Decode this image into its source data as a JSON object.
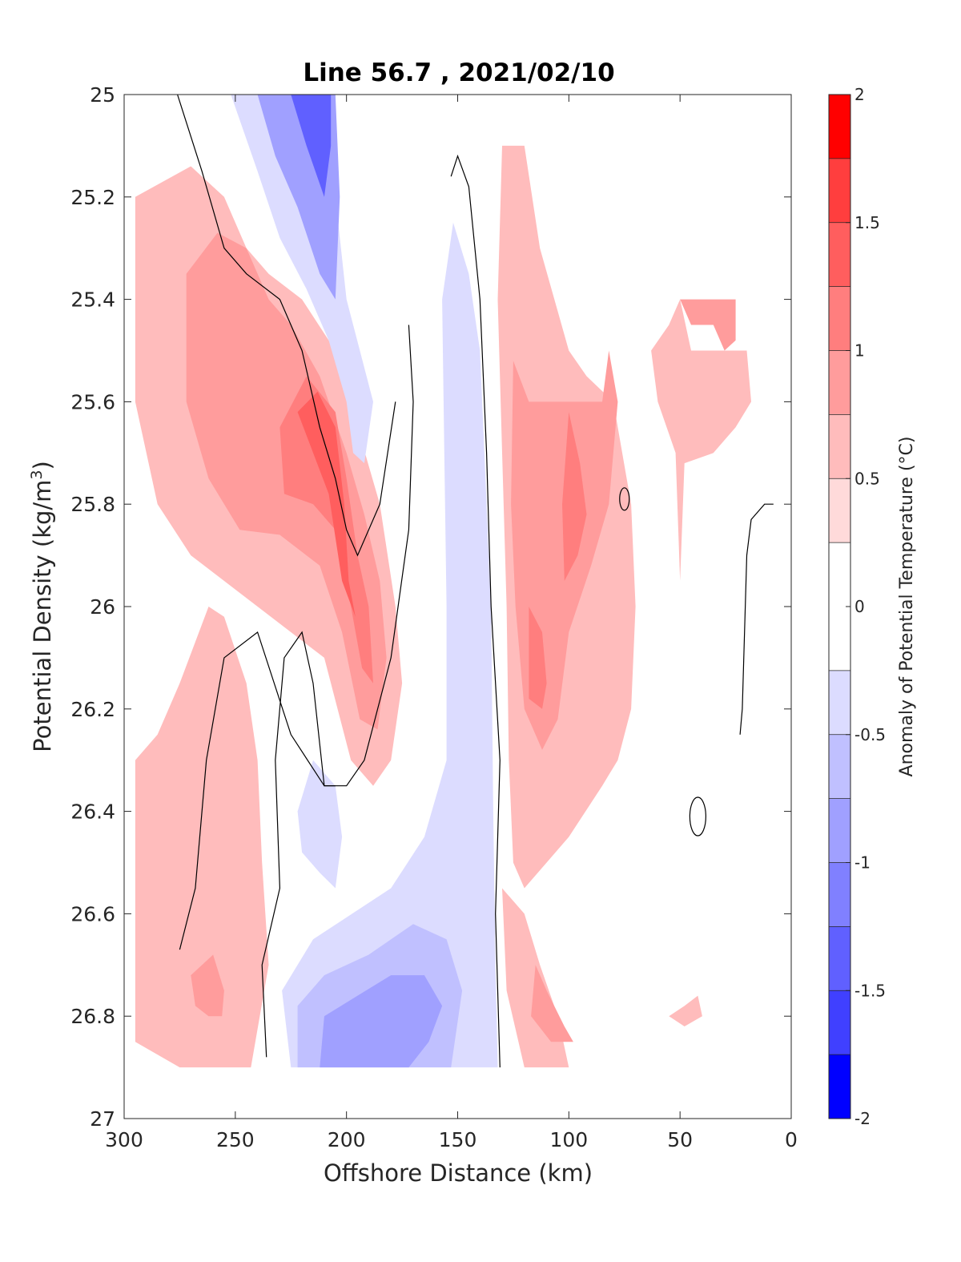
{
  "chart_data": {
    "type": "heatmap",
    "subtype": "filled-contour",
    "title": "Line 56.7 , 2021/02/10",
    "xlabel": "Offshore Distance (km)",
    "ylabel_text": "Potential Density (kg/m",
    "ylabel_superscript": "3",
    "ylabel_close": ")",
    "xlim": [
      300,
      0
    ],
    "ylim": [
      25,
      27
    ],
    "y_reversed": true,
    "x_reversed": true,
    "x_ticks": [
      "300",
      "250",
      "200",
      "150",
      "100",
      "50",
      "0"
    ],
    "y_ticks": [
      "25",
      "25.2",
      "25.4",
      "25.6",
      "25.8",
      "26",
      "26.2",
      "26.4",
      "26.6",
      "26.8",
      "27"
    ],
    "colorbar": {
      "label": "Anomaly of Potential Temperature (°C)",
      "range": [
        -2,
        2
      ],
      "tick_labels": [
        "2",
        "1.5",
        "1",
        "0.5",
        "0",
        "-0.5",
        "-1",
        "-1.5",
        "-2"
      ],
      "levels": [
        -2,
        -1.75,
        -1.5,
        -1.25,
        -1,
        -0.75,
        -0.5,
        -0.25,
        0.25,
        0.5,
        0.75,
        1,
        1.25,
        1.5,
        1.75,
        2
      ],
      "colors": [
        "#0000ff",
        "#2020ff",
        "#4040ff",
        "#6060ff",
        "#8080ff",
        "#a0a0ff",
        "#c0c0ff",
        "#dcdcff",
        "#ffffff",
        "#ffdada",
        "#ffbcbc",
        "#ff9c9c",
        "#ff7e7e",
        "#ff5e5e",
        "#ff3e3e",
        "#ff1e1e",
        "#ff0000"
      ]
    },
    "grid": false,
    "contour_zero_line": true,
    "regions": [
      {
        "name": "warm-offshore-upper",
        "level": 0.5,
        "points": [
          [
            295,
            25.2
          ],
          [
            270,
            25.14
          ],
          [
            255,
            25.2
          ],
          [
            245,
            25.3
          ],
          [
            235,
            25.35
          ],
          [
            220,
            25.4
          ],
          [
            205,
            25.5
          ],
          [
            195,
            25.65
          ],
          [
            185,
            25.8
          ],
          [
            178,
            26.0
          ],
          [
            175,
            26.15
          ],
          [
            180,
            26.3
          ],
          [
            188,
            26.35
          ],
          [
            198,
            26.3
          ],
          [
            210,
            26.1
          ],
          [
            225,
            26.05
          ],
          [
            240,
            26.0
          ],
          [
            255,
            25.95
          ],
          [
            270,
            25.9
          ],
          [
            285,
            25.8
          ],
          [
            295,
            25.6
          ]
        ]
      },
      {
        "name": "warm-offshore-core",
        "level": 0.75,
        "points": [
          [
            272,
            25.35
          ],
          [
            258,
            25.27
          ],
          [
            245,
            25.3
          ],
          [
            235,
            25.4
          ],
          [
            225,
            25.45
          ],
          [
            212,
            25.55
          ],
          [
            200,
            25.7
          ],
          [
            192,
            25.82
          ],
          [
            185,
            25.95
          ],
          [
            182,
            26.1
          ],
          [
            186,
            26.24
          ],
          [
            194,
            26.22
          ],
          [
            202,
            26.05
          ],
          [
            212,
            25.92
          ],
          [
            230,
            25.86
          ],
          [
            248,
            25.85
          ],
          [
            262,
            25.75
          ],
          [
            272,
            25.6
          ]
        ]
      },
      {
        "name": "warm-offshore-high",
        "level": 1.0,
        "points": [
          [
            230,
            25.65
          ],
          [
            218,
            25.55
          ],
          [
            205,
            25.62
          ],
          [
            200,
            25.75
          ],
          [
            195,
            25.9
          ],
          [
            190,
            26.0
          ],
          [
            188,
            26.15
          ],
          [
            193,
            26.12
          ],
          [
            198,
            26.0
          ],
          [
            205,
            25.85
          ],
          [
            215,
            25.8
          ],
          [
            228,
            25.78
          ]
        ]
      },
      {
        "name": "warm-offshore-max",
        "level": 1.25,
        "points": [
          [
            222,
            25.62
          ],
          [
            213,
            25.58
          ],
          [
            205,
            25.65
          ],
          [
            201,
            25.8
          ],
          [
            199,
            25.95
          ],
          [
            196,
            26.02
          ],
          [
            202,
            25.95
          ],
          [
            208,
            25.78
          ]
        ]
      },
      {
        "name": "cold-top",
        "level": -0.5,
        "points": [
          [
            252,
            25.0
          ],
          [
            240,
            25.15
          ],
          [
            230,
            25.28
          ],
          [
            218,
            25.38
          ],
          [
            208,
            25.48
          ],
          [
            200,
            25.6
          ],
          [
            197,
            25.7
          ],
          [
            192,
            25.72
          ],
          [
            188,
            25.6
          ],
          [
            200,
            25.4
          ],
          [
            205,
            25.2
          ],
          [
            210,
            25.0
          ]
        ]
      },
      {
        "name": "cold-top-core",
        "level": -1.0,
        "points": [
          [
            240,
            25.0
          ],
          [
            232,
            25.12
          ],
          [
            222,
            25.22
          ],
          [
            212,
            25.35
          ],
          [
            205,
            25.4
          ],
          [
            203,
            25.2
          ],
          [
            205,
            25.0
          ]
        ]
      },
      {
        "name": "cold-top-max",
        "level": -1.5,
        "points": [
          [
            225,
            25.0
          ],
          [
            218,
            25.1
          ],
          [
            210,
            25.2
          ],
          [
            207,
            25.1
          ],
          [
            207,
            25.0
          ]
        ]
      },
      {
        "name": "cold-column",
        "level": -0.5,
        "points": [
          [
            152,
            25.25
          ],
          [
            145,
            25.35
          ],
          [
            140,
            25.5
          ],
          [
            137,
            25.8
          ],
          [
            135,
            26.0
          ],
          [
            134,
            26.4
          ],
          [
            133,
            26.7
          ],
          [
            132,
            26.9
          ],
          [
            145,
            26.9
          ],
          [
            160,
            26.9
          ],
          [
            185,
            26.9
          ],
          [
            225,
            26.9
          ],
          [
            229,
            26.75
          ],
          [
            215,
            26.65
          ],
          [
            180,
            26.55
          ],
          [
            165,
            26.45
          ],
          [
            155,
            26.3
          ],
          [
            155,
            26.0
          ],
          [
            156,
            25.7
          ],
          [
            157,
            25.4
          ]
        ]
      },
      {
        "name": "cold-bottom-core",
        "level": -0.75,
        "points": [
          [
            222,
            26.9
          ],
          [
            222,
            26.78
          ],
          [
            210,
            26.72
          ],
          [
            190,
            26.68
          ],
          [
            170,
            26.62
          ],
          [
            155,
            26.65
          ],
          [
            148,
            26.75
          ],
          [
            153,
            26.9
          ]
        ]
      },
      {
        "name": "cold-bottom-max",
        "level": -1.0,
        "points": [
          [
            212,
            26.9
          ],
          [
            210,
            26.8
          ],
          [
            195,
            26.76
          ],
          [
            180,
            26.72
          ],
          [
            165,
            26.72
          ],
          [
            157,
            26.78
          ],
          [
            163,
            26.85
          ],
          [
            172,
            26.9
          ]
        ]
      },
      {
        "name": "cold-small-blob",
        "level": -0.5,
        "points": [
          [
            222,
            26.4
          ],
          [
            215,
            26.3
          ],
          [
            205,
            26.35
          ],
          [
            202,
            26.45
          ],
          [
            205,
            26.55
          ],
          [
            212,
            26.52
          ],
          [
            220,
            26.48
          ]
        ]
      },
      {
        "name": "warm-coastal-upper",
        "level": 0.5,
        "points": [
          [
            130,
            25.1
          ],
          [
            120,
            25.1
          ],
          [
            113,
            25.3
          ],
          [
            100,
            25.5
          ],
          [
            92,
            25.55
          ],
          [
            80,
            25.6
          ],
          [
            72,
            25.8
          ],
          [
            70,
            26.0
          ],
          [
            72,
            26.2
          ],
          [
            78,
            26.3
          ],
          [
            85,
            26.35
          ],
          [
            100,
            26.45
          ],
          [
            110,
            26.5
          ],
          [
            120,
            26.55
          ],
          [
            125,
            26.5
          ],
          [
            127,
            26.3
          ],
          [
            128,
            26.0
          ],
          [
            130,
            25.7
          ],
          [
            132,
            25.4
          ]
        ]
      },
      {
        "name": "warm-coastal-core",
        "level": 0.75,
        "points": [
          [
            125,
            25.52
          ],
          [
            118,
            25.6
          ],
          [
            100,
            25.6
          ],
          [
            85,
            25.6
          ],
          [
            82,
            25.5
          ],
          [
            78,
            25.6
          ],
          [
            82,
            25.8
          ],
          [
            90,
            25.92
          ],
          [
            100,
            26.05
          ],
          [
            105,
            26.22
          ],
          [
            112,
            26.28
          ],
          [
            120,
            26.2
          ],
          [
            124,
            26.0
          ],
          [
            126,
            25.8
          ]
        ]
      },
      {
        "name": "warm-coastal-high",
        "level": 1.0,
        "points": [
          [
            100,
            25.62
          ],
          [
            95,
            25.72
          ],
          [
            92,
            25.82
          ],
          [
            96,
            25.9
          ],
          [
            102,
            25.95
          ],
          [
            103,
            25.8
          ]
        ]
      },
      {
        "name": "warm-coastal-high-2",
        "level": 1.0,
        "points": [
          [
            118,
            26.0
          ],
          [
            112,
            26.05
          ],
          [
            110,
            26.15
          ],
          [
            112,
            26.2
          ],
          [
            118,
            26.18
          ]
        ]
      },
      {
        "name": "warm-nearshore",
        "level": 0.5,
        "points": [
          [
            50,
            25.4
          ],
          [
            45,
            25.5
          ],
          [
            35,
            25.5
          ],
          [
            20,
            25.5
          ],
          [
            18,
            25.6
          ],
          [
            25,
            25.65
          ],
          [
            35,
            25.7
          ],
          [
            48,
            25.72
          ],
          [
            50,
            25.95
          ],
          [
            52,
            25.7
          ],
          [
            60,
            25.6
          ],
          [
            63,
            25.5
          ],
          [
            55,
            25.45
          ]
        ]
      },
      {
        "name": "warm-nearshore-high",
        "level": 0.75,
        "points": [
          [
            50,
            25.4
          ],
          [
            45,
            25.45
          ],
          [
            35,
            25.45
          ],
          [
            30,
            25.5
          ],
          [
            25,
            25.48
          ],
          [
            25,
            25.4
          ]
        ]
      },
      {
        "name": "warm-deep-offshore",
        "level": 0.5,
        "points": [
          [
            295,
            26.3
          ],
          [
            285,
            26.25
          ],
          [
            275,
            26.15
          ],
          [
            262,
            26.0
          ],
          [
            255,
            26.02
          ],
          [
            245,
            26.15
          ],
          [
            240,
            26.3
          ],
          [
            238,
            26.5
          ],
          [
            235,
            26.7
          ],
          [
            243,
            26.9
          ],
          [
            275,
            26.9
          ],
          [
            295,
            26.85
          ]
        ]
      },
      {
        "name": "warm-deep-offshore-high",
        "level": 0.75,
        "points": [
          [
            270,
            26.72
          ],
          [
            260,
            26.68
          ],
          [
            255,
            26.75
          ],
          [
            256,
            26.8
          ],
          [
            262,
            26.8
          ],
          [
            268,
            26.78
          ]
        ]
      },
      {
        "name": "warm-deep-coastal",
        "level": 0.5,
        "points": [
          [
            130,
            26.55
          ],
          [
            120,
            26.6
          ],
          [
            113,
            26.7
          ],
          [
            105,
            26.8
          ],
          [
            100,
            26.9
          ],
          [
            120,
            26.9
          ],
          [
            128,
            26.75
          ]
        ]
      },
      {
        "name": "warm-deep-coastal-high",
        "level": 0.75,
        "points": [
          [
            115,
            26.7
          ],
          [
            110,
            26.75
          ],
          [
            102,
            26.82
          ],
          [
            98,
            26.85
          ],
          [
            108,
            26.85
          ],
          [
            117,
            26.8
          ]
        ]
      },
      {
        "name": "warm-small-near",
        "level": 0.5,
        "points": [
          [
            55,
            26.8
          ],
          [
            48,
            26.78
          ],
          [
            42,
            26.76
          ],
          [
            40,
            26.8
          ],
          [
            48,
            26.82
          ]
        ]
      }
    ]
  }
}
